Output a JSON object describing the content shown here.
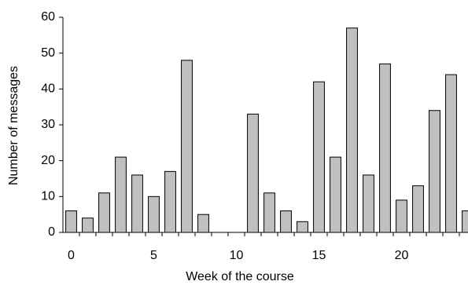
{
  "chart_data": {
    "type": "bar",
    "x_label": "Week of the course",
    "y_label": "Number of messages",
    "x": [
      0,
      1,
      2,
      3,
      4,
      5,
      6,
      7,
      8,
      9,
      10,
      11,
      12,
      13,
      14,
      15,
      16,
      17,
      18,
      19,
      20,
      21,
      22,
      23,
      24
    ],
    "values": [
      6,
      4,
      11,
      21,
      16,
      10,
      17,
      48,
      5,
      0,
      0,
      33,
      11,
      6,
      3,
      42,
      21,
      57,
      16,
      47,
      9,
      13,
      34,
      44,
      6
    ],
    "color": "#c0c0c0",
    "xlim": [
      -0.5,
      24.5
    ],
    "xticks": [
      0,
      5,
      10,
      15,
      20
    ],
    "ylim": [
      0,
      60
    ],
    "yticks": [
      0,
      10,
      20,
      30,
      40,
      50,
      60
    ],
    "grid": false
  }
}
